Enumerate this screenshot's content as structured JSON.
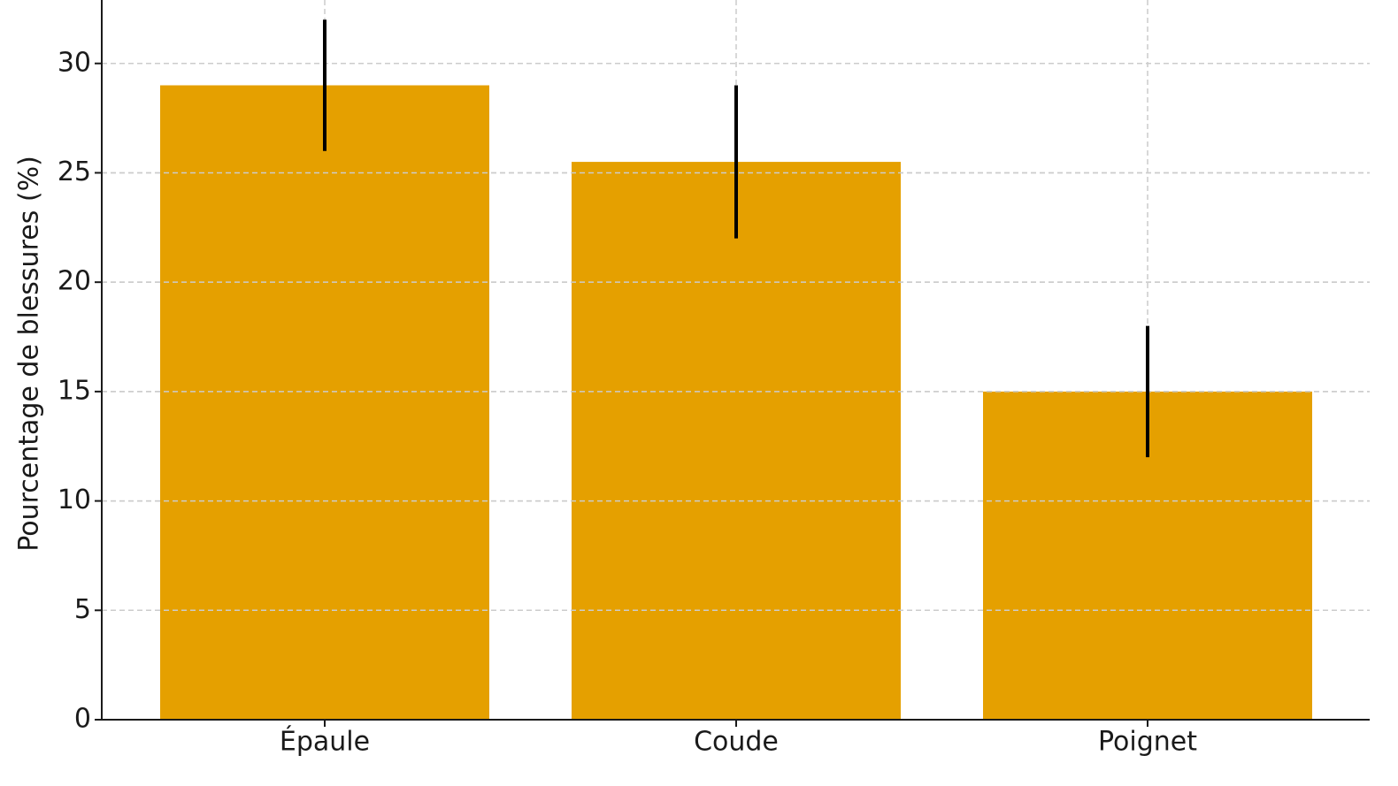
{
  "chart_data": {
    "type": "bar",
    "ylabel": "Pourcentage de blessures (%)",
    "categories": [
      "Épaule",
      "Coude",
      "Poignet"
    ],
    "values": [
      29,
      25.5,
      15
    ],
    "errors": [
      3,
      3.5,
      3
    ],
    "color": "#e5a000",
    "error_color": "#000000",
    "ylim": [
      0,
      32.9
    ],
    "yticks": [
      0,
      5,
      10,
      15,
      20,
      25,
      30
    ],
    "grid": true
  }
}
